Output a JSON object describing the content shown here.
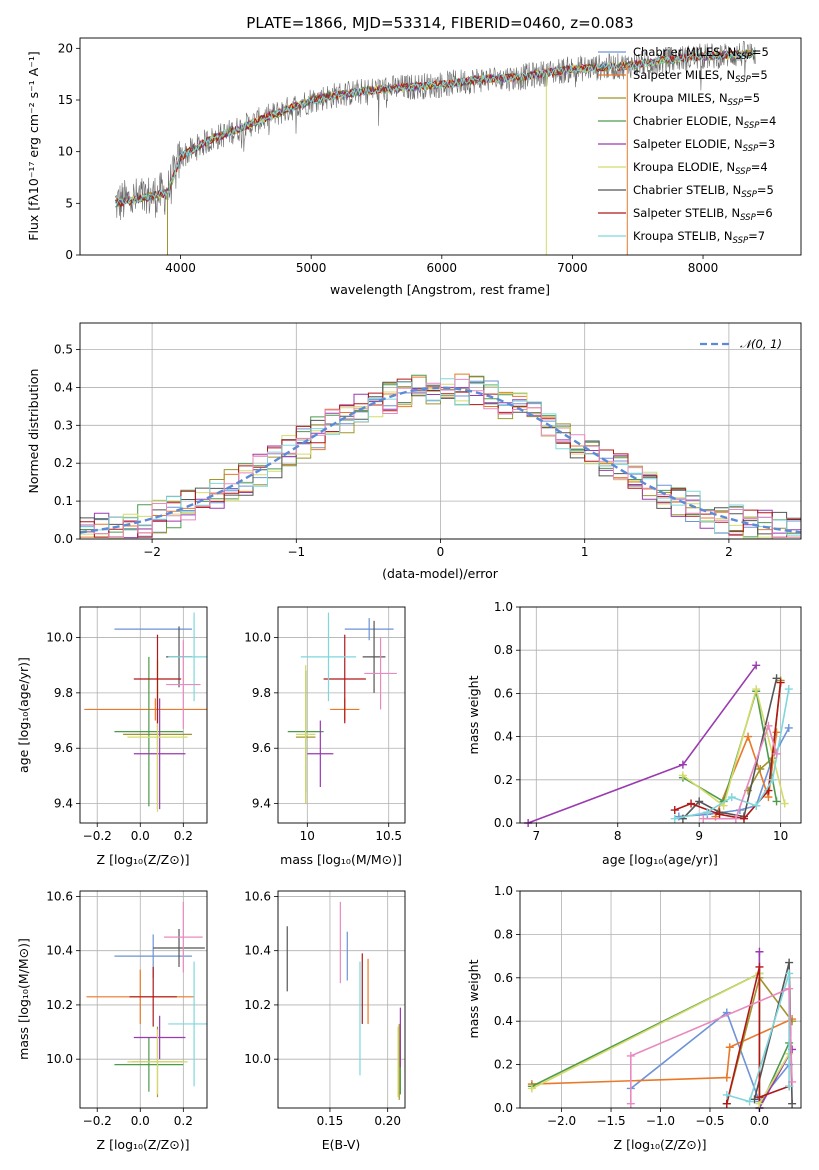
{
  "colors": [
    "#6e93d6",
    "#e8792a",
    "#a0952c",
    "#4d9a4d",
    "#9a3ab0",
    "#d4db6a",
    "#555555",
    "#b01818",
    "#7fd6dc",
    "#e88abf"
  ],
  "chart_data": [
    {
      "id": "spectrum",
      "type": "line",
      "title": "PLATE=1866, MJD=53314, FIBERID=0460, z=0.083",
      "xlabel": "wavelength [Angstrom, rest frame]",
      "ylabel": "Flux [fλ10⁻¹⁷ erg cm⁻² s⁻¹ A⁻¹]",
      "xlim": [
        3230,
        8750
      ],
      "ylim": [
        0,
        21
      ],
      "xticks": [
        4000,
        5000,
        6000,
        7000,
        8000
      ],
      "yticks": [
        0,
        5,
        10,
        15,
        20
      ],
      "legend_position": "top-right",
      "spectrum_anchor_points": {
        "x": [
          3500,
          3700,
          3900,
          4000,
          4200,
          4400,
          4600,
          4800,
          5000,
          5200,
          5500,
          5800,
          6000,
          6300,
          6600,
          7000,
          7400,
          7800,
          8000,
          8400
        ],
        "y": [
          5,
          5.5,
          6,
          9.5,
          11,
          12,
          13,
          14,
          15,
          15.5,
          16,
          16.3,
          16.5,
          17,
          17.2,
          18,
          18.3,
          19,
          19.2,
          19.5
        ]
      },
      "series": [
        {
          "name": "Chabrier MILES, N",
          "sub": "SSP",
          "suffix": "=5"
        },
        {
          "name": "Salpeter MILES, N",
          "sub": "SSP",
          "suffix": "=5"
        },
        {
          "name": "Kroupa MILES, N",
          "sub": "SSP",
          "suffix": "=5"
        },
        {
          "name": "Chabrier ELODIE, N",
          "sub": "SSP",
          "suffix": "=4"
        },
        {
          "name": "Salpeter ELODIE, N",
          "sub": "SSP",
          "suffix": "=3"
        },
        {
          "name": "Kroupa ELODIE, N",
          "sub": "SSP",
          "suffix": "=4"
        },
        {
          "name": "Chabrier STELIB, N",
          "sub": "SSP",
          "suffix": "=5"
        },
        {
          "name": "Salpeter STELIB, N",
          "sub": "SSP",
          "suffix": "=6"
        },
        {
          "name": "Kroupa STELIB, N",
          "sub": "SSP",
          "suffix": "=7"
        }
      ]
    },
    {
      "id": "residuals",
      "type": "line",
      "xlabel": "(data-model)/error",
      "ylabel": "Normed distribution",
      "xlim": [
        -2.5,
        2.5
      ],
      "ylim": [
        0,
        0.57
      ],
      "xticks": [
        -2,
        -1,
        0,
        1,
        2
      ],
      "xticklabels": [
        "−2",
        "−1",
        "0",
        "1",
        "2"
      ],
      "yticks": [
        0.0,
        0.1,
        0.2,
        0.3,
        0.4,
        0.5
      ],
      "yticklabels": [
        "0.0",
        "0.1",
        "0.2",
        "0.3",
        "0.4",
        "0.5"
      ],
      "legend": "𝒩(0, 1)",
      "legend_position": "top-right",
      "bin_width": 0.1,
      "gaussian": {
        "mean": 0,
        "sigma": 1
      }
    },
    {
      "id": "age_vs_Z",
      "type": "scatter",
      "xlabel": "Z [log₁₀(Z/Z⊙)]",
      "ylabel": "age  [log₁₀(age/yr)]",
      "xlim": [
        -0.28,
        0.31
      ],
      "ylim": [
        9.33,
        10.11
      ],
      "xticks": [
        -0.2,
        0.0,
        0.2
      ],
      "xticklabels": [
        "−0.2",
        "0.0",
        "0.2"
      ],
      "yticks": [
        9.4,
        9.6,
        9.8,
        10.0
      ],
      "yticklabels": [
        "9.4",
        "9.6",
        "9.8",
        "10.0"
      ],
      "points": [
        {
          "x": 0.06,
          "y": 10.03,
          "xerr": 0.18,
          "yerr": 0.0,
          "c": 0
        },
        {
          "x": 0.07,
          "y": 9.74,
          "xerr": 0.33,
          "yerr": 0.04,
          "c": 1
        },
        {
          "x": 0.08,
          "y": 9.65,
          "xerr": 0.16,
          "yerr": 0.27,
          "c": 2
        },
        {
          "x": 0.04,
          "y": 9.66,
          "xerr": 0.16,
          "yerr": 0.27,
          "c": 3
        },
        {
          "x": 0.09,
          "y": 9.58,
          "xerr": 0.12,
          "yerr": 0.2,
          "c": 4
        },
        {
          "x": 0.08,
          "y": 9.64,
          "xerr": 0.14,
          "yerr": 0.27,
          "c": 5
        },
        {
          "x": 0.18,
          "y": 9.93,
          "xerr": 0.06,
          "yerr": 0.11,
          "c": 6
        },
        {
          "x": 0.08,
          "y": 9.85,
          "xerr": 0.11,
          "yerr": 0.16,
          "c": 7
        },
        {
          "x": 0.25,
          "y": 9.93,
          "xerr": 0.12,
          "yerr": 0.16,
          "c": 8
        },
        {
          "x": 0.2,
          "y": 9.83,
          "xerr": 0.08,
          "yerr": 0.16,
          "c": 9
        }
      ]
    },
    {
      "id": "age_vs_mass",
      "type": "scatter",
      "xlabel": "mass [log₁₀(M/M⊙)]",
      "xlim": [
        9.82,
        10.6
      ],
      "ylim": [
        9.33,
        10.11
      ],
      "xticks": [
        10.0,
        10.5
      ],
      "xticklabels": [
        "10",
        "10.5"
      ],
      "yticks": [
        9.4,
        9.6,
        9.8,
        10.0
      ],
      "yticklabels": [
        "9.4",
        "9.6",
        "9.8",
        "10.0"
      ],
      "points": [
        {
          "x": 10.38,
          "y": 10.03,
          "xerr": 0.15,
          "yerr": 0.04,
          "c": 0
        },
        {
          "x": 10.23,
          "y": 9.74,
          "xerr": 0.09,
          "yerr": 0.04,
          "c": 1
        },
        {
          "x": 9.99,
          "y": 9.64,
          "xerr": 0.06,
          "yerr": 0.24,
          "c": 2
        },
        {
          "x": 9.99,
          "y": 9.66,
          "xerr": 0.11,
          "yerr": 0.22,
          "c": 3
        },
        {
          "x": 10.08,
          "y": 9.58,
          "xerr": 0.08,
          "yerr": 0.12,
          "c": 4
        },
        {
          "x": 9.99,
          "y": 9.65,
          "xerr": 0.06,
          "yerr": 0.25,
          "c": 5
        },
        {
          "x": 10.41,
          "y": 9.93,
          "xerr": 0.07,
          "yerr": 0.13,
          "c": 6
        },
        {
          "x": 10.23,
          "y": 9.85,
          "xerr": 0.13,
          "yerr": 0.16,
          "c": 7
        },
        {
          "x": 10.13,
          "y": 9.93,
          "xerr": 0.17,
          "yerr": 0.16,
          "c": 8
        },
        {
          "x": 10.45,
          "y": 9.87,
          "xerr": 0.1,
          "yerr": 0.13,
          "c": 9
        }
      ]
    },
    {
      "id": "mass_weight_vs_age",
      "type": "line",
      "xlabel": "age  [log₁₀(age/yr)]",
      "ylabel": "mass weight",
      "xlim": [
        6.8,
        10.25
      ],
      "ylim": [
        0,
        1
      ],
      "xticks": [
        7,
        8,
        9,
        10
      ],
      "yticks": [
        0.0,
        0.2,
        0.4,
        0.6,
        0.8,
        1.0
      ],
      "yticklabels": [
        "0.0",
        "0.2",
        "0.4",
        "0.6",
        "0.8",
        "1.0"
      ],
      "series": [
        {
          "c": 0,
          "x": [
            8.75,
            9.1,
            9.5,
            9.7,
            9.9,
            10.1
          ],
          "y": [
            0.03,
            0.04,
            0.06,
            0.08,
            0.3,
            0.44
          ]
        },
        {
          "c": 1,
          "x": [
            9.2,
            9.6,
            9.85,
            9.95
          ],
          "y": [
            0.03,
            0.4,
            0.12,
            0.42
          ]
        },
        {
          "c": 2,
          "x": [
            9.6,
            9.75,
            9.9,
            10.0
          ],
          "y": [
            0.15,
            0.25,
            0.3,
            0.66
          ]
        },
        {
          "c": 3,
          "x": [
            8.8,
            9.3,
            9.7,
            9.95
          ],
          "y": [
            0.21,
            0.1,
            0.61,
            0.1
          ]
        },
        {
          "c": 4,
          "x": [
            6.9,
            8.8,
            9.7
          ],
          "y": [
            0.0,
            0.27,
            0.73
          ]
        },
        {
          "c": 5,
          "x": [
            8.8,
            9.3,
            9.7,
            10.05
          ],
          "y": [
            0.22,
            0.08,
            0.62,
            0.09
          ]
        },
        {
          "c": 6,
          "x": [
            8.8,
            9.0,
            9.25,
            9.55,
            9.95
          ],
          "y": [
            0.02,
            0.1,
            0.05,
            0.03,
            0.67
          ]
        },
        {
          "c": 7,
          "x": [
            8.7,
            8.9,
            9.25,
            9.55,
            9.85,
            10.0
          ],
          "y": [
            0.06,
            0.09,
            0.04,
            0.02,
            0.15,
            0.65
          ]
        },
        {
          "c": 8,
          "x": [
            8.7,
            9.1,
            9.4,
            9.7,
            9.9,
            10.1
          ],
          "y": [
            0.02,
            0.05,
            0.12,
            0.08,
            0.2,
            0.62
          ]
        },
        {
          "c": 9,
          "x": [
            9.05,
            9.45,
            9.85,
            9.95
          ],
          "y": [
            0.02,
            0.02,
            0.45,
            0.32
          ]
        }
      ]
    },
    {
      "id": "mass_vs_Z",
      "type": "scatter",
      "xlabel": "Z [log₁₀(Z/Z⊙)]",
      "ylabel": "mass [log₁₀(M/M⊙)]",
      "xlim": [
        -0.28,
        0.31
      ],
      "ylim": [
        9.82,
        10.62
      ],
      "xticks": [
        -0.2,
        0.0,
        0.2
      ],
      "xticklabels": [
        "−0.2",
        "0.0",
        "0.2"
      ],
      "yticks": [
        10.0,
        10.2,
        10.4,
        10.6
      ],
      "yticklabels": [
        "10.0",
        "10.2",
        "10.4",
        "10.6"
      ],
      "points": [
        {
          "x": 0.06,
          "y": 10.38,
          "xerr": 0.18,
          "yerr": 0.08,
          "c": 0
        },
        {
          "x": 0.0,
          "y": 10.23,
          "xerr": 0.25,
          "yerr": 0.1,
          "c": 1
        },
        {
          "x": 0.08,
          "y": 9.99,
          "xerr": 0.12,
          "yerr": 0.13,
          "c": 2
        },
        {
          "x": 0.04,
          "y": 9.98,
          "xerr": 0.16,
          "yerr": 0.1,
          "c": 3
        },
        {
          "x": 0.09,
          "y": 10.08,
          "xerr": 0.12,
          "yerr": 0.08,
          "c": 4
        },
        {
          "x": 0.08,
          "y": 9.99,
          "xerr": 0.14,
          "yerr": 0.12,
          "c": 5
        },
        {
          "x": 0.18,
          "y": 10.41,
          "xerr": 0.12,
          "yerr": 0.07,
          "c": 6
        },
        {
          "x": 0.06,
          "y": 10.23,
          "xerr": 0.11,
          "yerr": 0.11,
          "c": 7
        },
        {
          "x": 0.25,
          "y": 10.13,
          "xerr": 0.12,
          "yerr": 0.23,
          "c": 8
        },
        {
          "x": 0.2,
          "y": 10.45,
          "xerr": 0.09,
          "yerr": 0.13,
          "c": 9
        }
      ]
    },
    {
      "id": "mass_vs_ebv",
      "type": "scatter",
      "xlabel": "E(B-V)",
      "xlim": [
        0.105,
        0.215
      ],
      "ylim": [
        9.82,
        10.62
      ],
      "xticks": [
        0.15,
        0.2
      ],
      "xticklabels": [
        "0.15",
        "0.20"
      ],
      "yticks": [
        10.0,
        10.2,
        10.4,
        10.6
      ],
      "yticklabels": [
        "10.0",
        "10.2",
        "10.4",
        "10.6"
      ],
      "points": [
        {
          "x": 0.165,
          "y": 10.38,
          "xerr": 0,
          "yerr": 0.09,
          "c": 0
        },
        {
          "x": 0.183,
          "y": 10.25,
          "xerr": 0,
          "yerr": 0.12,
          "c": 1
        },
        {
          "x": 0.21,
          "y": 9.99,
          "xerr": 0,
          "yerr": 0.14,
          "c": 2
        },
        {
          "x": 0.211,
          "y": 9.97,
          "xerr": 0,
          "yerr": 0.1,
          "c": 3
        },
        {
          "x": 0.211,
          "y": 10.08,
          "xerr": 0,
          "yerr": 0.11,
          "c": 4
        },
        {
          "x": 0.209,
          "y": 9.99,
          "xerr": 0,
          "yerr": 0.13,
          "c": 5
        },
        {
          "x": 0.113,
          "y": 10.37,
          "xerr": 0,
          "yerr": 0.12,
          "c": 6
        },
        {
          "x": 0.178,
          "y": 10.26,
          "xerr": 0,
          "yerr": 0.13,
          "c": 7
        },
        {
          "x": 0.176,
          "y": 10.15,
          "xerr": 0,
          "yerr": 0.21,
          "c": 8
        },
        {
          "x": 0.159,
          "y": 10.43,
          "xerr": 0,
          "yerr": 0.15,
          "c": 9
        }
      ]
    },
    {
      "id": "mass_weight_vs_Z",
      "type": "line",
      "xlabel": "Z [log₁₀(Z/Z⊙)]",
      "ylabel": "mass weight",
      "xlim": [
        -2.42,
        0.42
      ],
      "ylim": [
        0,
        1
      ],
      "xticks": [
        -2.0,
        -1.5,
        -1.0,
        -0.5,
        0.0
      ],
      "xticklabels": [
        "−2.0",
        "−1.5",
        "−1.0",
        "−0.5",
        "0.0"
      ],
      "yticks": [
        0.0,
        0.2,
        0.4,
        0.6,
        0.8,
        1.0
      ],
      "yticklabels": [
        "0.0",
        "0.2",
        "0.4",
        "0.6",
        "0.8",
        "1.0"
      ],
      "series": [
        {
          "c": 0,
          "x": [
            -1.3,
            -0.33,
            0.0,
            0.3
          ],
          "y": [
            0.09,
            0.44,
            0.03,
            0.2
          ]
        },
        {
          "c": 1,
          "x": [
            -2.3,
            -0.33,
            -0.3,
            0.33
          ],
          "y": [
            0.11,
            0.14,
            0.28,
            0.41
          ]
        },
        {
          "c": 2,
          "x": [
            -0.33,
            0.0,
            0.33
          ],
          "y": [
            0.02,
            0.6,
            0.4
          ]
        },
        {
          "c": 3,
          "x": [
            -2.3,
            0.0,
            0.0,
            0.3
          ],
          "y": [
            0.1,
            0.62,
            0.0,
            0.3
          ]
        },
        {
          "c": 4,
          "x": [
            0.0,
            0.0,
            0.33
          ],
          "y": [
            0.72,
            0.0,
            0.27
          ]
        },
        {
          "c": 5,
          "x": [
            -2.3,
            0.0,
            0.0,
            0.3
          ],
          "y": [
            0.09,
            0.62,
            0.02,
            0.25
          ]
        },
        {
          "c": 6,
          "x": [
            -0.05,
            0.3,
            0.33
          ],
          "y": [
            0.04,
            0.67,
            0.02
          ]
        },
        {
          "c": 7,
          "x": [
            -0.33,
            0.0,
            0.0,
            0.3
          ],
          "y": [
            0.02,
            0.65,
            0.05,
            0.1
          ]
        },
        {
          "c": 8,
          "x": [
            -0.33,
            -0.1,
            0.3,
            0.3
          ],
          "y": [
            0.06,
            0.03,
            0.62,
            0.1
          ]
        },
        {
          "c": 9,
          "x": [
            -1.3,
            -1.3,
            0.3,
            0.33
          ],
          "y": [
            0.02,
            0.24,
            0.55,
            0.12
          ]
        }
      ]
    }
  ]
}
